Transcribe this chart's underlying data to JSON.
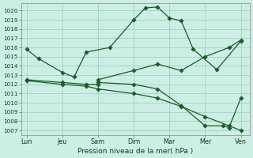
{
  "xlabel": "Pression niveau de la mer( hPa )",
  "ylim": [
    1006.5,
    1020.8
  ],
  "yticks": [
    1007,
    1008,
    1009,
    1010,
    1011,
    1012,
    1013,
    1014,
    1015,
    1016,
    1017,
    1018,
    1019,
    1020
  ],
  "xtick_labels": [
    "Lun",
    "Jeu",
    "Sam",
    "Dim",
    "Mar",
    "Mer",
    "Ven"
  ],
  "xtick_positions": [
    0,
    1,
    2,
    3,
    4,
    5,
    6
  ],
  "bg_color": "#cceee4",
  "grid_color": "#99ccbb",
  "line_color": "#1a5c28",
  "series1_x": [
    0,
    0.33,
    1.0,
    1.33,
    1.67,
    2.33,
    3.0,
    3.33,
    3.67,
    4.0,
    4.33,
    4.67,
    5.33,
    6.0
  ],
  "series1_y": [
    1015.8,
    1014.8,
    1013.3,
    1012.8,
    1015.5,
    1016.0,
    1019.0,
    1020.3,
    1020.4,
    1019.2,
    1018.9,
    1015.8,
    1013.6,
    1016.7
  ],
  "series2_x": [
    2.0,
    3.0,
    3.67,
    4.33,
    5.0,
    5.67,
    6.0
  ],
  "series2_y": [
    1012.5,
    1013.5,
    1014.2,
    1013.5,
    1015.0,
    1016.0,
    1016.8
  ],
  "series3_x": [
    2.0,
    3.0,
    3.67,
    4.33,
    5.0,
    5.5,
    5.67,
    6.0
  ],
  "series3_y": [
    1012.2,
    1012.0,
    1011.5,
    1009.7,
    1007.5,
    1007.5,
    1007.3,
    1010.5
  ],
  "series4_x": [
    0,
    1.0,
    1.67,
    2.0
  ],
  "series4_y": [
    1012.5,
    1012.2,
    1012.0,
    1012.0
  ],
  "series5_x": [
    0,
    1.0,
    1.67,
    2.0,
    3.0,
    3.67,
    4.33,
    5.0,
    5.67,
    6.0
  ],
  "series5_y": [
    1012.4,
    1012.0,
    1011.8,
    1011.5,
    1011.0,
    1010.5,
    1009.6,
    1008.5,
    1007.5,
    1007.0
  ]
}
